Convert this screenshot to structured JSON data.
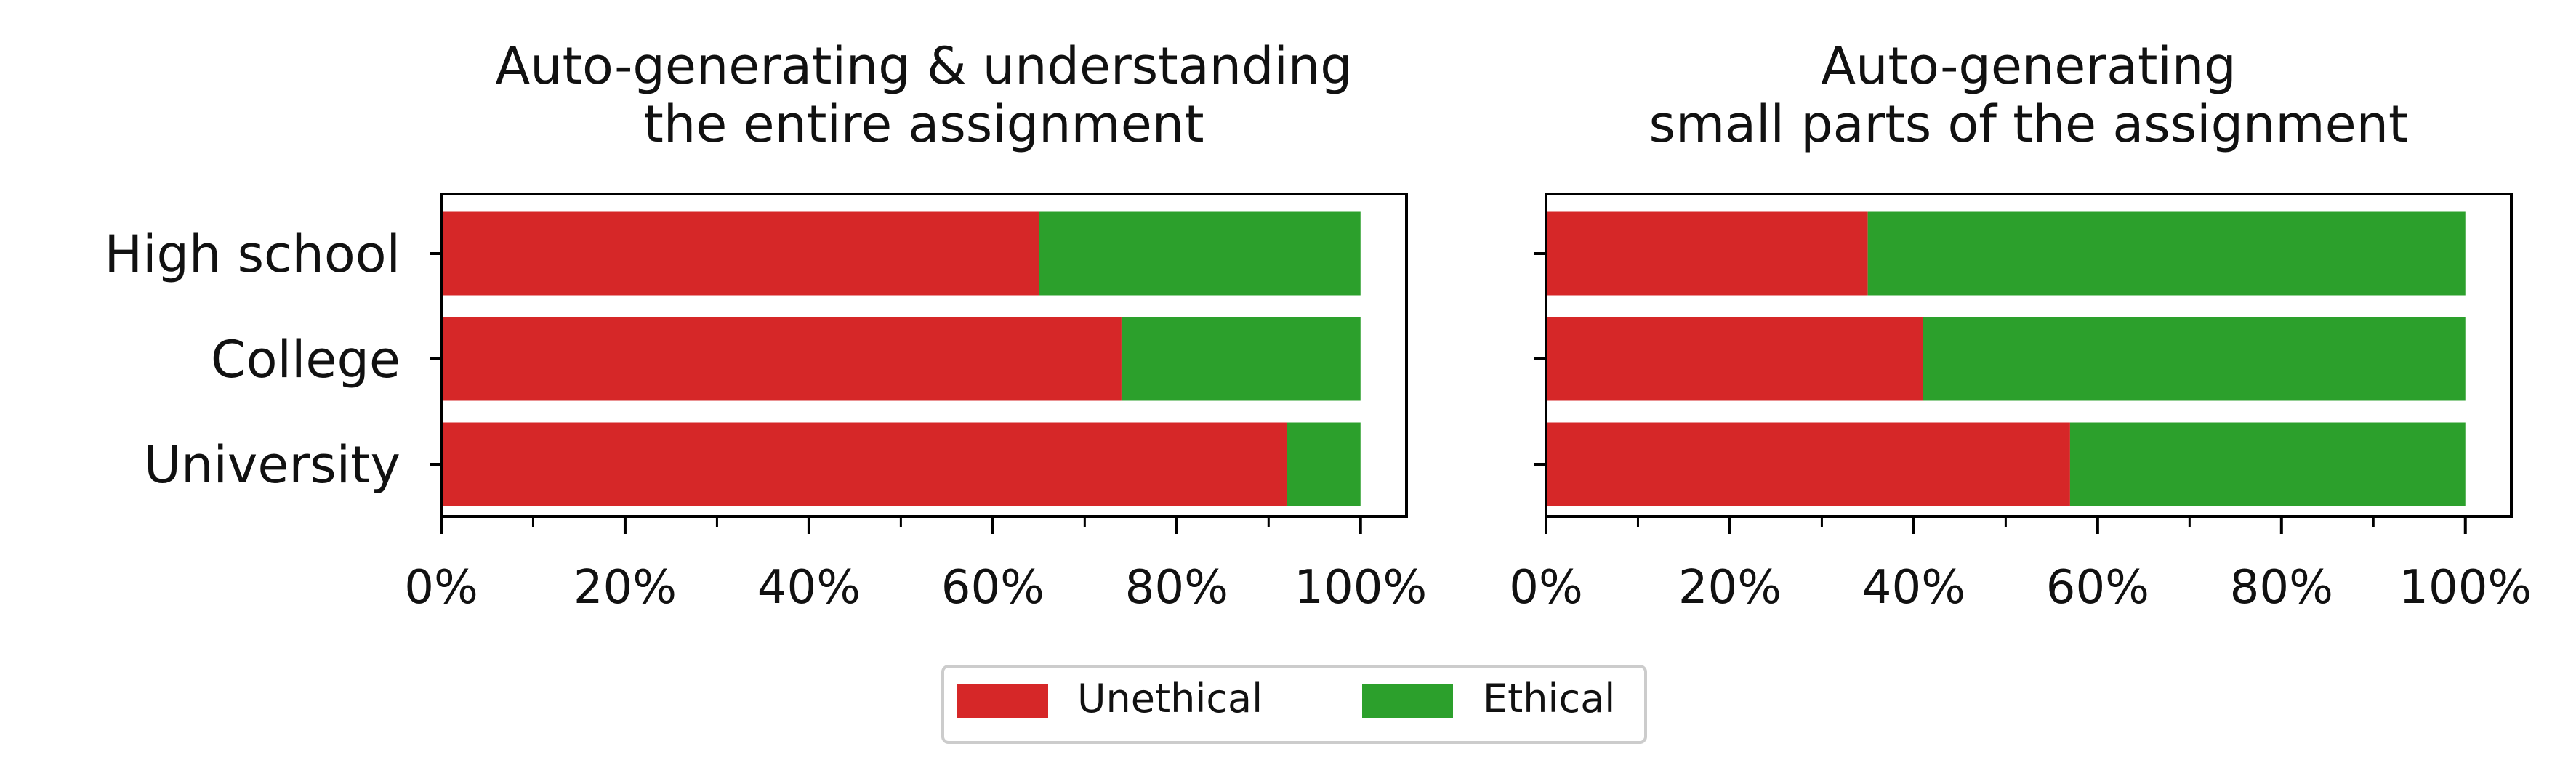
{
  "chart_data": [
    {
      "type": "bar",
      "orientation": "horizontal",
      "stacked": true,
      "title_lines": [
        "Auto-generating & understanding",
        "the entire assignment"
      ],
      "categories": [
        "High school",
        "College",
        "University"
      ],
      "series": [
        {
          "name": "Unethical",
          "color": "#d62728",
          "values": [
            65,
            74,
            92
          ]
        },
        {
          "name": "Ethical",
          "color": "#2ca02c",
          "values": [
            35,
            26,
            8
          ]
        }
      ],
      "xlim": [
        0,
        105
      ],
      "xticks": [
        0,
        20,
        40,
        60,
        80,
        100
      ],
      "xtick_labels": [
        "0%",
        "20%",
        "40%",
        "60%",
        "80%",
        "100%"
      ],
      "minor_xticks": [
        10,
        30,
        50,
        70,
        90
      ],
      "show_ytick_labels": true,
      "grid": false
    },
    {
      "type": "bar",
      "orientation": "horizontal",
      "stacked": true,
      "title_lines": [
        "Auto-generating",
        "small parts of the assignment"
      ],
      "categories": [
        "High school",
        "College",
        "University"
      ],
      "series": [
        {
          "name": "Unethical",
          "color": "#d62728",
          "values": [
            35,
            41,
            57
          ]
        },
        {
          "name": "Ethical",
          "color": "#2ca02c",
          "values": [
            65,
            59,
            43
          ]
        }
      ],
      "xlim": [
        0,
        105
      ],
      "xticks": [
        0,
        20,
        40,
        60,
        80,
        100
      ],
      "xtick_labels": [
        "0%",
        "20%",
        "40%",
        "60%",
        "80%",
        "100%"
      ],
      "minor_xticks": [
        10,
        30,
        50,
        70,
        90
      ],
      "show_ytick_labels": false,
      "grid": false
    }
  ],
  "legend": {
    "position": "bottom-center",
    "items": [
      {
        "label": "Unethical",
        "color": "#d62728"
      },
      {
        "label": "Ethical",
        "color": "#2ca02c"
      }
    ]
  }
}
